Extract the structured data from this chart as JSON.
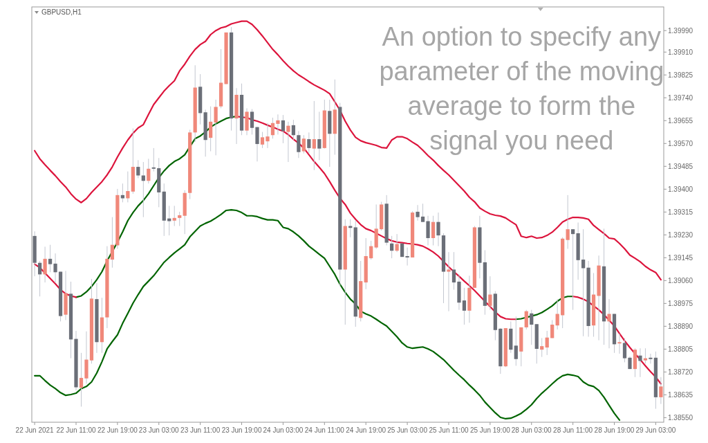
{
  "chart_data": {
    "type": "candlestick",
    "title": "GBPUSD,H1",
    "annotations": [
      "An option to specify any\nparameter of the moving\naverage to form the\nsignal you need"
    ],
    "categories": [
      "22 Jun 2021",
      null,
      null,
      null,
      null,
      null,
      null,
      null,
      "22 Jun 11:00",
      null,
      null,
      null,
      null,
      null,
      null,
      null,
      "22 Jun 19:00",
      null,
      null,
      null,
      null,
      null,
      null,
      null,
      "23 Jun 03:00",
      null,
      null,
      null,
      null,
      null,
      null,
      null,
      "23 Jun 11:00",
      null,
      null,
      null,
      null,
      null,
      null,
      null,
      "23 Jun 19:00",
      null,
      null,
      null,
      null,
      null,
      null,
      null,
      "24 Jun 03:00",
      null,
      null,
      null,
      null,
      null,
      null,
      null,
      "24 Jun 11:00",
      null,
      null,
      null,
      null,
      null,
      null,
      null,
      "24 Jun 19:00",
      null,
      null,
      null,
      null,
      null,
      null,
      null,
      "25 Jun 03:00",
      null,
      null,
      null,
      null,
      null,
      null,
      null,
      "25 Jun 11:00",
      null,
      null,
      null,
      null,
      null,
      null,
      null,
      "25 Jun 19:00",
      null,
      null,
      null,
      null,
      null,
      null,
      null,
      "28 Jun 03:00",
      null,
      null,
      null,
      null,
      null,
      null,
      null,
      "28 Jun 11:00",
      null,
      null,
      null,
      null,
      null,
      null,
      null,
      "28 Jun 19:00",
      null,
      null,
      null,
      null,
      null,
      null,
      null,
      "29 Jun 03:00",
      null
    ],
    "ylim": [
      1.38533,
      1.40078
    ],
    "yticks": [
      {
        "value": 1.3999,
        "label": "1.39990"
      },
      {
        "value": 1.3991,
        "label": "1.39910"
      },
      1.39825,
      {
        "value": 1.3974,
        "label": "1.39740"
      },
      1.39655,
      {
        "value": 1.3957,
        "label": "1.39570"
      },
      1.39485,
      {
        "value": 1.394,
        "label": "1.39400"
      },
      1.39315,
      {
        "value": 1.3923,
        "label": "1.39230"
      },
      1.39145,
      {
        "value": 1.3906,
        "label": "1.39060"
      },
      1.38975,
      {
        "value": 1.3889,
        "label": "1.38890"
      },
      1.38805,
      {
        "value": 1.3872,
        "label": "1.38720"
      },
      1.38635,
      {
        "value": 1.3855,
        "label": "1.38550"
      }
    ],
    "color": "#c3c7d0",
    "colors": [
      "#6b6f78",
      "#6b6f78",
      "#f0887a",
      "#6b6f78",
      "#6b6f78",
      "#6b6f78",
      "#f0887a",
      "#6b6f78",
      "#6b6f78",
      "#f0887a",
      "#f0887a",
      "#f0887a",
      "#6b6f78",
      "#f0887a",
      "#f0887a",
      "#f0887a",
      "#f0887a",
      "#6b6f78",
      "#f0887a",
      "#f0887a",
      "#6b6f78",
      "#6b6f78",
      "#f0887a",
      "#6b6f78",
      "#6b6f78",
      "#6b6f78",
      "#6b6f78",
      "#f0887a",
      "#f0887a",
      "#f0887a",
      "#f0887a",
      "#f0887a",
      "#6b6f78",
      "#6b6f78",
      "#f0887a",
      "#f0887a",
      "#f0887a",
      "#f0887a",
      "#6b6f78",
      "#f0887a",
      "#6b6f78",
      "#f0887a",
      "#6b6f78",
      "#6b6f78",
      "#f0887a",
      "#f0887a",
      "#f0887a",
      "#f0887a",
      "#6b6f78",
      "#f0887a",
      "#6b6f78",
      "#6b6f78",
      "#f0887a",
      "#6b6f78",
      "#f0887a",
      "#6b6f78",
      "#f0887a",
      "#6b6f78",
      "#f0887a",
      "#6b6f78",
      "#f0887a",
      "#6b6f78",
      "#6b6f78",
      "#f0887a",
      "#f0887a",
      "#f0887a",
      "#f0887a",
      "#f0887a",
      "#6b6f78",
      "#6b6f78",
      "#f0887a",
      "#6b6f78",
      "#6b6f78",
      "#f0887a",
      "#6b6f78",
      "#6b6f78",
      "#6b6f78",
      "#f0887a",
      "#6b6f78",
      "#6b6f78",
      "#f0887a",
      "#6b6f78",
      "#6b6f78",
      "#6b6f78",
      "#f0887a",
      "#f0887a",
      "#6b6f78",
      "#6b6f78",
      "#f0887a",
      "#6b6f78",
      "#6b6f78",
      "#f0887a",
      "#6b6f78",
      "#6b6f78",
      "#f0887a",
      "#f0887a",
      "#6b6f78",
      "#6b6f78",
      "#f0887a",
      "#f0887a",
      "#f0887a",
      "#f0887a",
      "#f0887a",
      "#f0887a",
      "#6b6f78",
      "#6b6f78",
      "#6b6f78",
      "#6b6f78",
      "#f0887a",
      "#f0887a",
      "#6b6f78",
      "#f0887a",
      "#6b6f78",
      "#f0887a",
      "#6b6f78",
      "#6b6f78",
      "#f0887a",
      "#6b6f78",
      "#f0887a",
      "#6b6f78",
      "#6b6f78",
      "#f0887a"
    ],
    "ohlc": [
      [
        1.39226,
        1.39243,
        1.39076,
        1.39126
      ],
      [
        1.39126,
        1.39133,
        1.39001,
        1.39083
      ],
      [
        1.39083,
        1.39186,
        1.39053,
        1.39141
      ],
      [
        1.39141,
        1.39193,
        1.39091,
        1.39121
      ],
      [
        1.39123,
        1.39161,
        1.39051,
        1.39091
      ],
      [
        1.39093,
        1.39093,
        1.38908,
        1.38928
      ],
      [
        1.38933,
        1.39096,
        1.38913,
        1.39013
      ],
      [
        1.39011,
        1.39056,
        1.38771,
        1.38841
      ],
      [
        1.38843,
        1.38873,
        1.38651,
        1.38663
      ],
      [
        1.38661,
        1.38791,
        1.38591,
        1.38698
      ],
      [
        1.38696,
        1.38871,
        1.38676,
        1.38766
      ],
      [
        1.38763,
        1.39066,
        1.38751,
        1.38993
      ],
      [
        1.38991,
        1.39051,
        1.38791,
        1.38831
      ],
      [
        1.38831,
        1.38996,
        1.38791,
        1.38923
      ],
      [
        1.38923,
        1.39188,
        1.38883,
        1.39141
      ],
      [
        1.39138,
        1.39296,
        1.39108,
        1.39193
      ],
      [
        1.39191,
        1.39401,
        1.39178,
        1.39378
      ],
      [
        1.39378,
        1.39421,
        1.39351,
        1.39366
      ],
      [
        1.39366,
        1.39466,
        1.39351,
        1.39393
      ],
      [
        1.39391,
        1.39626,
        1.39383,
        1.39483
      ],
      [
        1.39483,
        1.39508,
        1.39441,
        1.39451
      ],
      [
        1.39451,
        1.39501,
        1.39296,
        1.39431
      ],
      [
        1.39431,
        1.39513,
        1.39421,
        1.39476
      ],
      [
        1.39481,
        1.39553,
        1.39466,
        1.39476
      ],
      [
        1.39478,
        1.39516,
        1.39333,
        1.39388
      ],
      [
        1.39391,
        1.39421,
        1.39226,
        1.39283
      ],
      [
        1.39291,
        1.39338,
        1.39228,
        1.39281
      ],
      [
        1.39283,
        1.39338,
        1.39263,
        1.39293
      ],
      [
        1.39293,
        1.39316,
        1.39263,
        1.39303
      ],
      [
        1.39301,
        1.39396,
        1.39233,
        1.39386
      ],
      [
        1.39386,
        1.39621,
        1.39363,
        1.39611
      ],
      [
        1.39611,
        1.39861,
        1.39576,
        1.39778
      ],
      [
        1.39781,
        1.39828,
        1.39641,
        1.39683
      ],
      [
        1.39686,
        1.39696,
        1.39521,
        1.39583
      ],
      [
        1.39591,
        1.39708,
        1.39541,
        1.39651
      ],
      [
        1.39648,
        1.39733,
        1.39526,
        1.39706
      ],
      [
        1.39708,
        1.39921,
        1.39701,
        1.39796
      ],
      [
        1.39791,
        1.39983,
        1.39791,
        1.39983
      ],
      [
        1.39983,
        1.40003,
        1.39618,
        1.39663
      ],
      [
        1.39663,
        1.39776,
        1.39568,
        1.39751
      ],
      [
        1.39751,
        1.39793,
        1.39601,
        1.39618
      ],
      [
        1.39618,
        1.39701,
        1.39601,
        1.39688
      ],
      [
        1.39688,
        1.39698,
        1.39603,
        1.39628
      ],
      [
        1.39631,
        1.39631,
        1.39503,
        1.39568
      ],
      [
        1.39566,
        1.39613,
        1.39553,
        1.39593
      ],
      [
        1.39578,
        1.39646,
        1.39553,
        1.39596
      ],
      [
        1.39601,
        1.39666,
        1.39588,
        1.39646
      ],
      [
        1.39643,
        1.39678,
        1.39603,
        1.39656
      ],
      [
        1.39656,
        1.39676,
        1.39571,
        1.39616
      ],
      [
        1.39613,
        1.39651,
        1.39501,
        1.39636
      ],
      [
        1.39638,
        1.39658,
        1.39583,
        1.39601
      ],
      [
        1.39601,
        1.39616,
        1.39516,
        1.39538
      ],
      [
        1.39541,
        1.39601,
        1.39533,
        1.39588
      ],
      [
        1.39586,
        1.39611,
        1.39533,
        1.39553
      ],
      [
        1.39551,
        1.39728,
        1.39471,
        1.39586
      ],
      [
        1.39586,
        1.39688,
        1.39508,
        1.39551
      ],
      [
        1.39553,
        1.39733,
        1.39551,
        1.39693
      ],
      [
        1.39691,
        1.39733,
        1.39483,
        1.39606
      ],
      [
        1.39606,
        1.39808,
        1.39528,
        1.39696
      ],
      [
        1.39706,
        1.39721,
        1.39038,
        1.39101
      ],
      [
        1.39101,
        1.39288,
        1.38896,
        1.39263
      ],
      [
        1.39263,
        1.39288,
        1.39221,
        1.39256
      ],
      [
        1.39258,
        1.39283,
        1.38888,
        1.38926
      ],
      [
        1.38921,
        1.39133,
        1.38908,
        1.39058
      ],
      [
        1.39053,
        1.39218,
        1.39028,
        1.39151
      ],
      [
        1.39143,
        1.39208,
        1.39138,
        1.39188
      ],
      [
        1.39183,
        1.39343,
        1.39178,
        1.39253
      ],
      [
        1.39251,
        1.39353,
        1.39246,
        1.39343
      ],
      [
        1.39346,
        1.39378,
        1.39191,
        1.39201
      ],
      [
        1.39198,
        1.39226,
        1.39143,
        1.39171
      ],
      [
        1.39171,
        1.39233,
        1.39166,
        1.39196
      ],
      [
        1.39198,
        1.39198,
        1.39148,
        1.39148
      ],
      [
        1.39151,
        1.39183,
        1.39116,
        1.39146
      ],
      [
        1.39146,
        1.39318,
        1.39146,
        1.39313
      ],
      [
        1.39316,
        1.39341,
        1.39283,
        1.39296
      ],
      [
        1.39298,
        1.39346,
        1.39278,
        1.39278
      ],
      [
        1.39281,
        1.39301,
        1.39191,
        1.39218
      ],
      [
        1.39218,
        1.39301,
        1.39191,
        1.39278
      ],
      [
        1.39278,
        1.39313,
        1.39188,
        1.39228
      ],
      [
        1.39228,
        1.39236,
        1.38976,
        1.39093
      ],
      [
        1.39093,
        1.39166,
        1.38946,
        1.39101
      ],
      [
        1.39101,
        1.39166,
        1.39026,
        1.39053
      ],
      [
        1.39056,
        1.39083,
        1.38951,
        1.38978
      ],
      [
        1.38986,
        1.39033,
        1.38896,
        1.38948
      ],
      [
        1.38948,
        1.39078,
        1.38903,
        1.39033
      ],
      [
        1.39033,
        1.39263,
        1.39033,
        1.39258
      ],
      [
        1.39258,
        1.39301,
        1.39068,
        1.39126
      ],
      [
        1.39128,
        1.39173,
        1.38933,
        1.38966
      ],
      [
        1.38966,
        1.39076,
        1.38951,
        1.39008
      ],
      [
        1.39011,
        1.39021,
        1.38838,
        1.38876
      ],
      [
        1.38881,
        1.38883,
        1.38713,
        1.38741
      ],
      [
        1.38741,
        1.38883,
        1.38738,
        1.38883
      ],
      [
        1.38881,
        1.38908,
        1.38791,
        1.38803
      ],
      [
        1.38818,
        1.38926,
        1.38743,
        1.38768
      ],
      [
        1.38796,
        1.38886,
        1.38741,
        1.38886
      ],
      [
        1.38886,
        1.38951,
        1.38878,
        1.38946
      ],
      [
        1.38938,
        1.38951,
        1.38821,
        1.38896
      ],
      [
        1.38898,
        1.38898,
        1.38751,
        1.38806
      ],
      [
        1.38803,
        1.38846,
        1.38776,
        1.38816
      ],
      [
        1.38811,
        1.38873,
        1.38783,
        1.38848
      ],
      [
        1.38846,
        1.38913,
        1.38846,
        1.38896
      ],
      [
        1.38893,
        1.38991,
        1.38878,
        1.38936
      ],
      [
        1.38931,
        1.39221,
        1.38883,
        1.39216
      ],
      [
        1.39211,
        1.39378,
        1.39178,
        1.39251
      ],
      [
        1.39251,
        1.39251,
        1.38951,
        1.39233
      ],
      [
        1.39236,
        1.39276,
        1.39063,
        1.39136
      ],
      [
        1.39138,
        1.39251,
        1.38853,
        1.39106
      ],
      [
        1.39108,
        1.39133,
        1.38851,
        1.38891
      ],
      [
        1.38893,
        1.39088,
        1.38851,
        1.39008
      ],
      [
        1.39003,
        1.39153,
        1.38838,
        1.39116
      ],
      [
        1.39113,
        1.39253,
        1.38821,
        1.38908
      ],
      [
        1.38908,
        1.38991,
        1.38808,
        1.38936
      ],
      [
        1.38936,
        1.38936,
        1.38791,
        1.38823
      ],
      [
        1.38826,
        1.38863,
        1.38788,
        1.38831
      ],
      [
        1.38828,
        1.38846,
        1.38756,
        1.38771
      ],
      [
        1.38773,
        1.38778,
        1.38731,
        1.38731
      ],
      [
        1.38731,
        1.38808,
        1.38701,
        1.38803
      ],
      [
        1.38781,
        1.38808,
        1.38701,
        1.38761
      ],
      [
        1.38763,
        1.38808,
        1.38751,
        1.38771
      ],
      [
        1.38773,
        1.38788,
        1.38751,
        1.38768
      ],
      [
        1.38773,
        1.38796,
        1.38583,
        1.38626
      ],
      [
        1.38626,
        1.38701,
        1.38601,
        1.38666
      ]
    ],
    "series": [
      {
        "type": "line",
        "color": "#dc143c",
        "values": [
          1.39543,
          1.39513,
          1.39491,
          1.3947,
          1.3945,
          1.39428,
          1.39408,
          1.39383,
          1.39363,
          1.3935,
          1.39365,
          1.39388,
          1.39408,
          1.39428,
          1.39453,
          1.39483,
          1.3952,
          1.39553,
          1.39583,
          1.39608,
          1.39628,
          1.3964,
          1.39678,
          1.39715,
          1.3974,
          1.39765,
          1.39785,
          1.39803,
          1.3984,
          1.39865,
          1.39895,
          1.3992,
          1.39938,
          1.3995,
          1.39975,
          1.3999,
          1.4,
          1.40005,
          1.40015,
          1.4002,
          1.40025,
          1.40025,
          1.40013,
          1.39993,
          1.3997,
          1.39945,
          1.3992,
          1.399,
          1.39878,
          1.39858,
          1.3984,
          1.39825,
          1.39813,
          1.398,
          1.39788,
          1.39778,
          1.39768,
          1.39755,
          1.39725,
          1.39693,
          1.39653,
          1.3962,
          1.39593,
          1.3958,
          1.39573,
          1.39568,
          1.39563,
          1.39555,
          1.39553,
          1.39583,
          1.39595,
          1.39595,
          1.39588,
          1.39575,
          1.39563,
          1.39545,
          1.39525,
          1.39508,
          1.39488,
          1.3947,
          1.39453,
          1.39433,
          1.39413,
          1.39393,
          1.3937,
          1.39353,
          1.3933,
          1.39318,
          1.39308,
          1.39303,
          1.393,
          1.39293,
          1.3928,
          1.39268,
          1.39225,
          1.3922,
          1.39225,
          1.39218,
          1.3922,
          1.39228,
          1.3924,
          1.39258,
          1.39278,
          1.39288,
          1.39295,
          1.39295,
          1.39293,
          1.39288,
          1.39265,
          1.3925,
          1.39235,
          1.39218,
          1.39215,
          1.39198,
          1.39178,
          1.39155,
          1.39143,
          1.3913,
          1.39113,
          1.391,
          1.3909,
          1.39063
        ]
      },
      {
        "type": "line",
        "color": "#006400",
        "values": [
          1.38706,
          1.38706,
          1.38688,
          1.38671,
          1.38658,
          1.38643,
          1.38633,
          1.38636,
          1.38641,
          1.38658,
          1.38666,
          1.38683,
          1.38716,
          1.38758,
          1.38806,
          1.38833,
          1.38858,
          1.38901,
          1.38938,
          1.38976,
          1.39008,
          1.39038,
          1.39058,
          1.39078,
          1.39103,
          1.39128,
          1.39146,
          1.39163,
          1.39178,
          1.39193,
          1.39223,
          1.39243,
          1.39263,
          1.39273,
          1.39281,
          1.39293,
          1.39306,
          1.39321,
          1.39323,
          1.39321,
          1.39313,
          1.39301,
          1.39301,
          1.39298,
          1.39291,
          1.39286,
          1.39286,
          1.39283,
          1.39258,
          1.39253,
          1.39241,
          1.39226,
          1.39208,
          1.39188,
          1.39173,
          1.39158,
          1.39143,
          1.39113,
          1.39083,
          1.39046,
          1.39016,
          1.38991,
          1.38973,
          1.38946,
          1.38936,
          1.38928,
          1.38916,
          1.38903,
          1.38891,
          1.38871,
          1.38851,
          1.38828,
          1.38813,
          1.38808,
          1.38811,
          1.38813,
          1.38806,
          1.38796,
          1.38781,
          1.38766,
          1.38746,
          1.38726,
          1.38708,
          1.38691,
          1.38671,
          1.38653,
          1.38633,
          1.38608,
          1.38588,
          1.38568,
          1.38551,
          1.38546,
          1.38548,
          1.38556,
          1.38566,
          1.38581,
          1.38598,
          1.38621,
          1.38641,
          1.38658,
          1.38676,
          1.38693,
          1.38706,
          1.38711,
          1.38708,
          1.38703,
          1.38683,
          1.38671,
          1.38666,
          1.38651,
          1.38626,
          1.38596,
          1.38566,
          1.38541,
          null,
          null,
          null,
          null,
          null,
          null,
          null,
          null
        ]
      },
      {
        "type": "line",
        "color": "#006400",
        "values": [
          null,
          null,
          null,
          null,
          null,
          null,
          null,
          null,
          1.38998,
          1.39003,
          1.39018,
          1.39038,
          1.39063,
          1.39093,
          1.39133,
          1.39168,
          1.39203,
          1.39241,
          1.39283,
          1.39313,
          1.39338,
          1.39358,
          1.39383,
          1.39413,
          1.39443,
          1.39468,
          1.39488,
          1.39503,
          1.39513,
          1.39528,
          1.39558,
          1.39588,
          1.39598,
          1.39613,
          1.39631,
          1.39643,
          1.39653,
          1.39663,
          1.39668,
          1.39671,
          null,
          null,
          null,
          null,
          null,
          null,
          null,
          null,
          null,
          null,
          null,
          null,
          null,
          null,
          null,
          null,
          null,
          null,
          null,
          null,
          null,
          null,
          null,
          null,
          null,
          null,
          null,
          null,
          null,
          null,
          null,
          null,
          null,
          null,
          null,
          null,
          null,
          null,
          null,
          null,
          null,
          null,
          null,
          null,
          null,
          null,
          null,
          null,
          null,
          null,
          null,
          null,
          null,
          1.38916,
          1.38918,
          1.38923,
          1.38928,
          1.38933,
          1.38941,
          1.38953,
          1.38966,
          1.38983,
          1.38996,
          1.39001,
          1.39001,
          null,
          null,
          null,
          null,
          null,
          null,
          null,
          null,
          null,
          null,
          null,
          null,
          null,
          null,
          null,
          null,
          null
        ]
      },
      {
        "type": "line",
        "color": "#dc143c",
        "values": [
          1.39121,
          1.39108,
          1.39088,
          1.39068,
          1.39048,
          1.39026,
          1.39011,
          1.39003,
          1.38998,
          null,
          null,
          null,
          null,
          null,
          null,
          null,
          null,
          null,
          null,
          null,
          null,
          null,
          null,
          null,
          null,
          null,
          null,
          null,
          null,
          null,
          null,
          null,
          null,
          null,
          null,
          null,
          null,
          null,
          null,
          1.39671,
          1.39668,
          1.39666,
          1.39658,
          1.39653,
          1.39646,
          1.39638,
          1.39631,
          1.39623,
          1.39616,
          1.39603,
          1.39586,
          1.39571,
          1.39553,
          1.39528,
          1.39503,
          1.39481,
          1.39458,
          1.39428,
          1.39396,
          1.39366,
          1.39343,
          1.39311,
          1.39288,
          1.39268,
          1.39253,
          1.39246,
          1.39236,
          1.39226,
          1.39216,
          1.39208,
          1.39203,
          1.39201,
          1.39198,
          1.39196,
          1.39193,
          1.39188,
          1.39178,
          1.39166,
          1.39151,
          1.39131,
          1.39111,
          1.39093,
          1.39076,
          1.39058,
          1.39041,
          1.39023,
          1.39003,
          1.38983,
          1.38963,
          1.38943,
          1.38926,
          1.38918,
          1.38916,
          1.38916,
          null,
          null,
          null,
          null,
          null,
          null,
          null,
          null,
          null,
          null,
          1.39001,
          1.38998,
          1.38991,
          1.38981,
          1.38966,
          1.38951,
          1.38933,
          1.38913,
          1.38891,
          1.38863,
          1.38836,
          1.38811,
          1.38788,
          1.38766,
          1.38743,
          1.38721,
          1.38701,
          1.38676
        ]
      }
    ]
  }
}
